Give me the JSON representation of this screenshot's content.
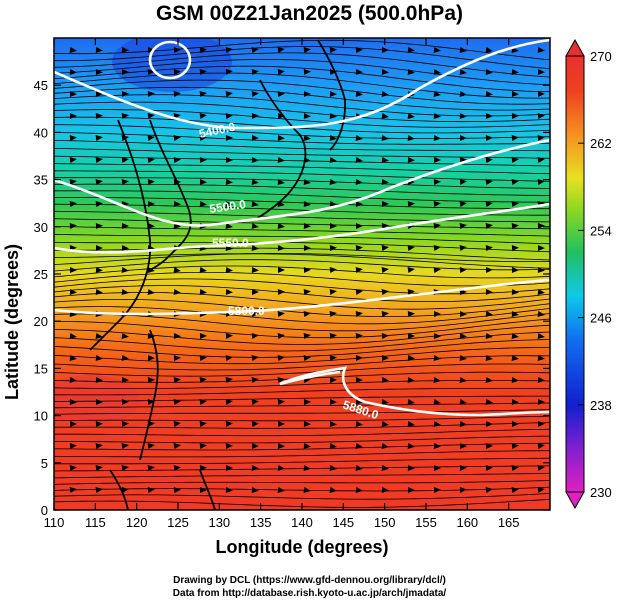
{
  "title": "GSM 00Z21Jan2025 (500.0hPa)",
  "x_axis": {
    "label": "Longitude (degrees)",
    "ticks": [
      "110",
      "115",
      "120",
      "125",
      "130",
      "135",
      "140",
      "145",
      "150",
      "155",
      "160",
      "165"
    ]
  },
  "y_axis": {
    "label": "Latitude  (degrees)",
    "ticks": [
      "0",
      "5",
      "10",
      "15",
      "20",
      "25",
      "30",
      "35",
      "40",
      "45"
    ]
  },
  "colorbar": {
    "ticks": [
      "230",
      "238",
      "246",
      "254",
      "262",
      "270"
    ],
    "colors": [
      "#e020c0",
      "#9020d0",
      "#1020d0",
      "#1060f0",
      "#10b0f0",
      "#10d0b0",
      "#20c040",
      "#80d020",
      "#e0e020",
      "#f0a020",
      "#f06010",
      "#f03020",
      "#e83030"
    ]
  },
  "contour_labels": [
    "5400.0",
    "5500.0",
    "5550.0",
    "5800.0",
    "5880.0"
  ],
  "footer": {
    "credit_line1": "Drawing by DCL (https://www.gfd-dennou.org/library/dcl/)",
    "credit_line2": "Data from http://database.rish.kyoto-u.ac.jp/arch/jmadata/"
  }
}
